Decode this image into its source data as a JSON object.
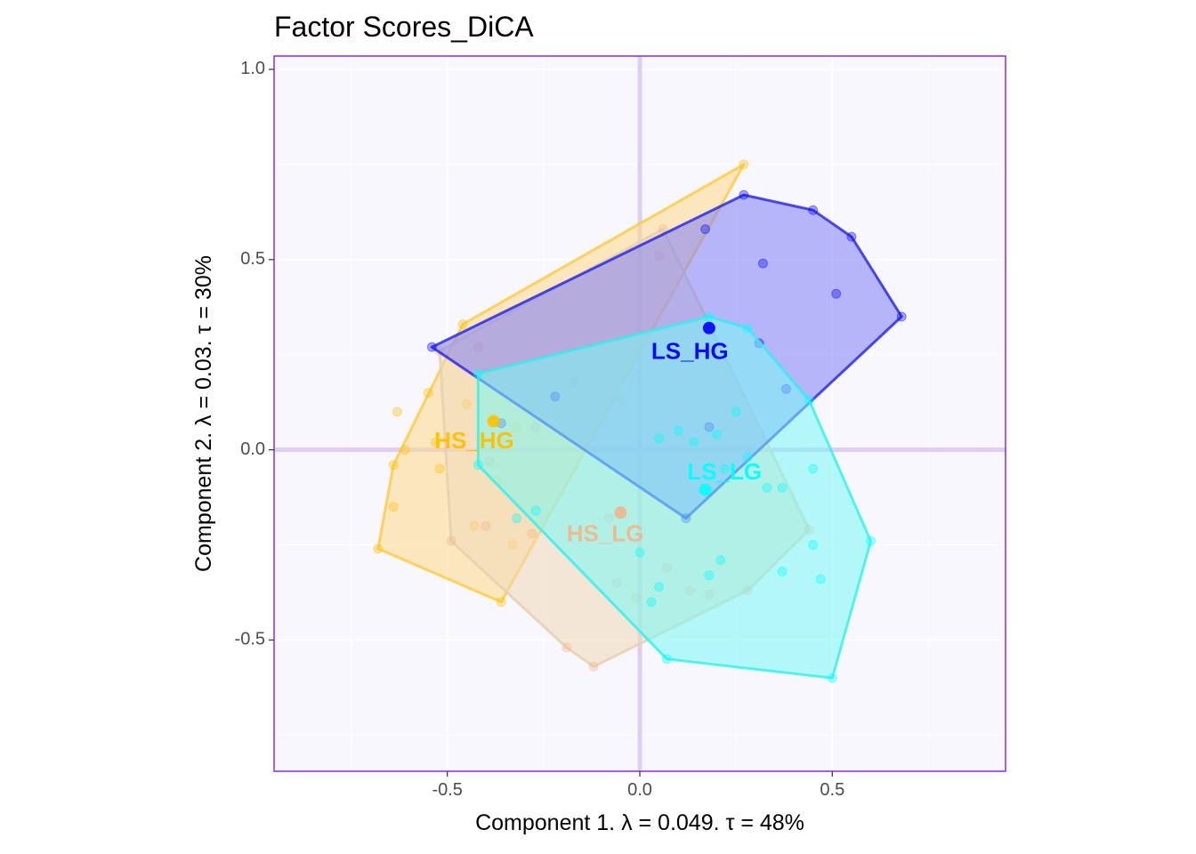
{
  "chart_data": {
    "type": "scatter",
    "title": "Factor Scores_DiCA",
    "xlabel": "Component 1.   λ = 0.049.  τ = 48%",
    "ylabel": "Component 2.   λ = 0.03.  τ = 30%",
    "xlim": [
      -0.95,
      0.95
    ],
    "ylim": [
      -0.845,
      1.035
    ],
    "x_ticks": [
      {
        "value": -0.5,
        "label": "-0.5"
      },
      {
        "value": 0.0,
        "label": "0.0"
      },
      {
        "value": 0.5,
        "label": "0.5"
      }
    ],
    "y_ticks": [
      {
        "value": -0.5,
        "label": "-0.5"
      },
      {
        "value": 0.0,
        "label": "0.0"
      },
      {
        "value": 0.5,
        "label": "0.5"
      },
      {
        "value": 1.0,
        "label": "1.0"
      }
    ],
    "grid": true,
    "background_color": "#f8f7fd",
    "border_color": "#8a2be2",
    "origin_line_color": "#e0cdf3",
    "series": [
      {
        "name": "HS_HG",
        "color": "#ffbf00",
        "hull_fill": "#ffd98a",
        "hull_stroke": "#ffc93c",
        "mean": [
          -0.38,
          0.075
        ],
        "label_pos": [
          -0.43,
          0.02
        ],
        "hull": [
          [
            0.27,
            0.75
          ],
          [
            -0.46,
            0.33
          ],
          [
            -0.64,
            -0.04
          ],
          [
            -0.68,
            -0.26
          ],
          [
            -0.36,
            -0.4
          ]
        ],
        "points": [
          [
            0.27,
            0.75
          ],
          [
            -0.46,
            0.33
          ],
          [
            -0.64,
            -0.04
          ],
          [
            -0.68,
            -0.26
          ],
          [
            -0.36,
            -0.4
          ],
          [
            -0.55,
            0.15
          ],
          [
            -0.63,
            0.1
          ],
          [
            -0.61,
            0.0
          ],
          [
            -0.53,
            0.02
          ],
          [
            -0.52,
            -0.05
          ],
          [
            -0.64,
            -0.15
          ],
          [
            -0.4,
            0.2
          ],
          [
            -0.45,
            0.12
          ],
          [
            -0.32,
            0.06
          ],
          [
            -0.37,
            -0.08
          ],
          [
            -0.43,
            -0.2
          ],
          [
            -0.33,
            -0.25
          ]
        ]
      },
      {
        "name": "HS_LG",
        "color": "#f0b78a",
        "hull_fill": "#f0d8b8",
        "hull_stroke": "#e4cfb0",
        "mean": [
          -0.05,
          -0.165
        ],
        "label_pos": [
          -0.09,
          -0.225
        ],
        "hull": [
          [
            0.06,
            0.58
          ],
          [
            0.44,
            -0.21
          ],
          [
            0.28,
            -0.37
          ],
          [
            -0.12,
            -0.57
          ],
          [
            -0.19,
            -0.52
          ],
          [
            -0.49,
            -0.24
          ],
          [
            -0.52,
            0.26
          ]
        ],
        "points": [
          [
            0.06,
            0.58
          ],
          [
            0.44,
            -0.21
          ],
          [
            0.28,
            -0.37
          ],
          [
            -0.12,
            -0.57
          ],
          [
            -0.19,
            -0.52
          ],
          [
            -0.49,
            -0.24
          ],
          [
            -0.52,
            0.26
          ],
          [
            0.05,
            0.51
          ],
          [
            -0.42,
            0.27
          ],
          [
            -0.27,
            0.06
          ],
          [
            -0.17,
            0.18
          ],
          [
            -0.05,
            0.13
          ],
          [
            -0.39,
            -0.03
          ],
          [
            -0.08,
            -0.18
          ],
          [
            -0.4,
            -0.2
          ],
          [
            -0.28,
            -0.22
          ],
          [
            0.07,
            -0.31
          ],
          [
            0.13,
            -0.37
          ],
          [
            0.18,
            -0.38
          ],
          [
            -0.01,
            -0.39
          ],
          [
            -0.06,
            -0.35
          ]
        ]
      },
      {
        "name": "LS_HG",
        "color": "#0000ff",
        "hull_fill": "#7f7ff7",
        "hull_stroke": "#2222ee",
        "mean": [
          0.18,
          0.32
        ],
        "label_pos": [
          0.13,
          0.255
        ],
        "hull": [
          [
            0.27,
            0.67
          ],
          [
            0.45,
            0.63
          ],
          [
            0.55,
            0.56
          ],
          [
            0.68,
            0.35
          ],
          [
            0.12,
            -0.18
          ],
          [
            -0.54,
            0.27
          ]
        ],
        "points": [
          [
            0.27,
            0.67
          ],
          [
            0.45,
            0.63
          ],
          [
            0.55,
            0.56
          ],
          [
            0.68,
            0.35
          ],
          [
            0.12,
            -0.18
          ],
          [
            -0.54,
            0.27
          ],
          [
            0.17,
            0.58
          ],
          [
            0.32,
            0.49
          ],
          [
            0.51,
            0.41
          ],
          [
            0.31,
            0.28
          ],
          [
            0.38,
            0.16
          ],
          [
            -0.22,
            0.14
          ],
          [
            -0.36,
            0.07
          ],
          [
            0.18,
            0.06
          ]
        ]
      },
      {
        "name": "LS_LG",
        "color": "#00ffff",
        "hull_fill": "#7af7f4",
        "hull_stroke": "#2ef0ee",
        "mean": [
          0.17,
          -0.105
        ],
        "label_pos": [
          0.22,
          -0.062
        ],
        "hull": [
          [
            0.18,
            0.35
          ],
          [
            0.28,
            0.32
          ],
          [
            0.44,
            0.13
          ],
          [
            0.6,
            -0.24
          ],
          [
            0.5,
            -0.6
          ],
          [
            0.07,
            -0.55
          ],
          [
            -0.42,
            -0.04
          ],
          [
            -0.42,
            0.2
          ]
        ],
        "points": [
          [
            0.18,
            0.35
          ],
          [
            0.28,
            0.32
          ],
          [
            0.44,
            0.13
          ],
          [
            0.6,
            -0.24
          ],
          [
            0.5,
            -0.6
          ],
          [
            0.07,
            -0.55
          ],
          [
            -0.42,
            -0.04
          ],
          [
            -0.42,
            0.2
          ],
          [
            0.25,
            0.1
          ],
          [
            0.2,
            0.04
          ],
          [
            0.1,
            0.05
          ],
          [
            0.05,
            0.03
          ],
          [
            0.14,
            0.02
          ],
          [
            0.22,
            -0.05
          ],
          [
            0.28,
            -0.02
          ],
          [
            0.33,
            -0.1
          ],
          [
            0.37,
            -0.1
          ],
          [
            0.45,
            -0.05
          ],
          [
            0.45,
            -0.25
          ],
          [
            0.47,
            -0.34
          ],
          [
            0.37,
            -0.32
          ],
          [
            0.18,
            -0.33
          ],
          [
            0.21,
            -0.29
          ],
          [
            0.05,
            -0.36
          ],
          [
            0.03,
            -0.4
          ],
          [
            0.0,
            -0.27
          ],
          [
            -0.27,
            -0.16
          ],
          [
            -0.32,
            -0.18
          ]
        ]
      }
    ]
  }
}
